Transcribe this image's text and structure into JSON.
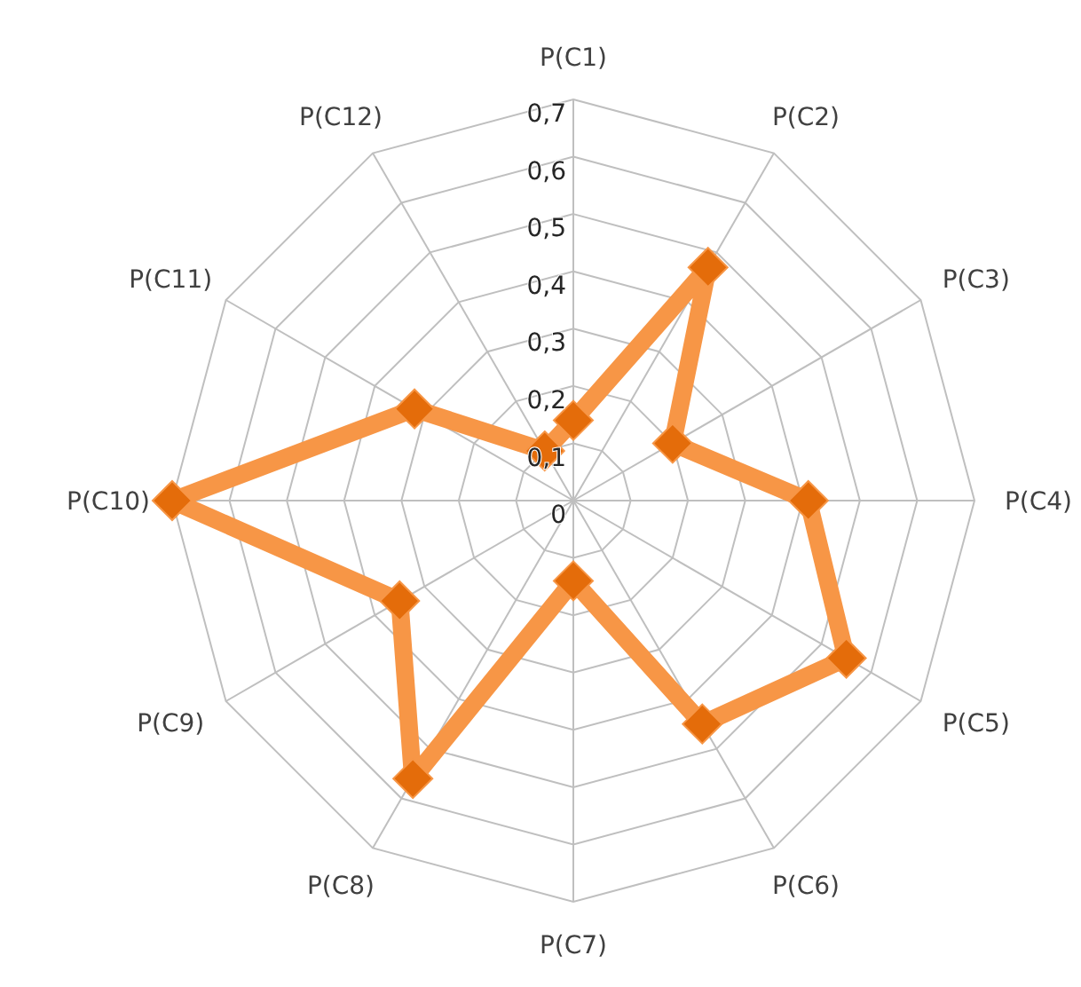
{
  "chart_data": {
    "type": "radar",
    "categories": [
      "P(C1)",
      "P(C2)",
      "P(C3)",
      "P(C4)",
      "P(C5)",
      "P(C6)",
      "P(C7)",
      "P(C8)",
      "P(C9)",
      "P(C10)",
      "P(C11)",
      "P(C12)"
    ],
    "series": [
      {
        "color": "#f79646",
        "values": [
          0.14,
          0.47,
          0.2,
          0.41,
          0.55,
          0.45,
          0.14,
          0.56,
          0.35,
          0.7,
          0.32,
          0.1
        ]
      }
    ],
    "ylim": [
      0,
      0.7
    ],
    "yticks": [
      0,
      {
        "value": 0.1,
        "label": "0,1"
      },
      {
        "value": 0.2,
        "label": "0,2"
      },
      {
        "value": 0.3,
        "label": "0,3"
      },
      {
        "value": 0.4,
        "label": "0,4"
      },
      {
        "value": 0.5,
        "label": "0,5"
      },
      {
        "value": 0.6,
        "label": "0,6"
      },
      {
        "value": 0.7,
        "label": "0,7"
      }
    ],
    "grid": true,
    "marker": "diamond",
    "line_style": "solid"
  }
}
